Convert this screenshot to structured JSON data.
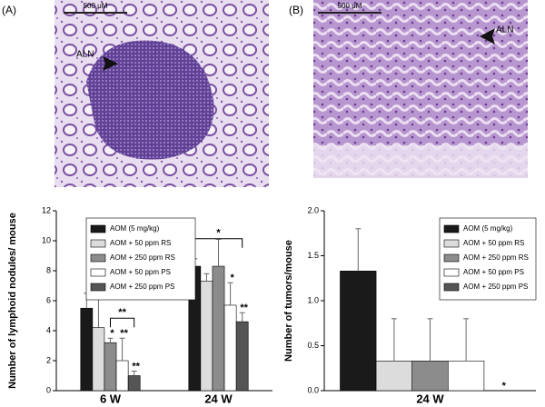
{
  "panels": [
    {
      "label": "(A)",
      "scale_bar": "500 μM",
      "arrow_label": "ALN"
    },
    {
      "label": "(B)",
      "scale_bar": "500 μM",
      "arrow_label": "ALN"
    }
  ],
  "chart_data": [
    {
      "type": "bar",
      "y_label": "Number of lymphoid nodules/ mouse",
      "categories": [
        "6 W",
        "24 W"
      ],
      "ylim": [
        0,
        12
      ],
      "yticks": [
        0,
        2,
        4,
        6,
        8,
        10,
        12
      ],
      "legend": "upper-right",
      "series": [
        {
          "name": "AOM  (5 mg/kg)",
          "color": "#1a1a1a",
          "values": [
            5.5,
            8.3
          ],
          "errors": [
            1.0,
            0.5
          ]
        },
        {
          "name": "AOM + 50 ppm RS",
          "color": "#dcdcdc",
          "values": [
            4.2,
            7.3
          ],
          "errors": [
            2.0,
            0.5
          ]
        },
        {
          "name": "AOM + 250 ppm RS",
          "color": "#8c8c8c",
          "values": [
            3.2,
            8.3
          ],
          "errors": [
            0.3,
            1.8
          ],
          "significance": [
            "*",
            null
          ]
        },
        {
          "name": "AOM + 50 ppm PS",
          "color": "#ffffff",
          "values": [
            2.0,
            5.7
          ],
          "errors": [
            1.5,
            1.5
          ],
          "significance": [
            "**",
            "*"
          ]
        },
        {
          "name": "AOM + 250 ppm PS",
          "color": "#555555",
          "values": [
            1.0,
            4.6
          ],
          "errors": [
            0.3,
            0.6
          ],
          "significance": [
            "**",
            "**"
          ]
        }
      ],
      "brackets": [
        "**",
        "*"
      ]
    },
    {
      "type": "bar",
      "y_label": "Number of tumors/mouse",
      "categories": [
        "24 W"
      ],
      "ylim": [
        0,
        2
      ],
      "yticks": [
        {
          "value": 0,
          "label": "0.0"
        },
        0.5,
        {
          "value": 1,
          "label": "1.0"
        },
        1.5,
        {
          "value": 2,
          "label": "2.0"
        }
      ],
      "legend": "upper-right",
      "series": [
        {
          "name": "AOM  (5 mg/kg)",
          "color": "#1a1a1a",
          "values": [
            1.33
          ],
          "errors": [
            0.47
          ]
        },
        {
          "name": "AOM + 50 ppm RS",
          "color": "#dcdcdc",
          "values": [
            0.33
          ],
          "errors": [
            0.47
          ]
        },
        {
          "name": "AOM + 250 ppm RS",
          "color": "#8c8c8c",
          "values": [
            0.33
          ],
          "errors": [
            0.47
          ]
        },
        {
          "name": "AOM + 50 ppm PS",
          "color": "#ffffff",
          "values": [
            0.33
          ],
          "errors": [
            0.47
          ]
        },
        {
          "name": "AOM + 250 ppm PS",
          "color": "#555555",
          "values": [
            0
          ],
          "errors": [
            0
          ],
          "significance": [
            "*"
          ]
        }
      ]
    }
  ]
}
